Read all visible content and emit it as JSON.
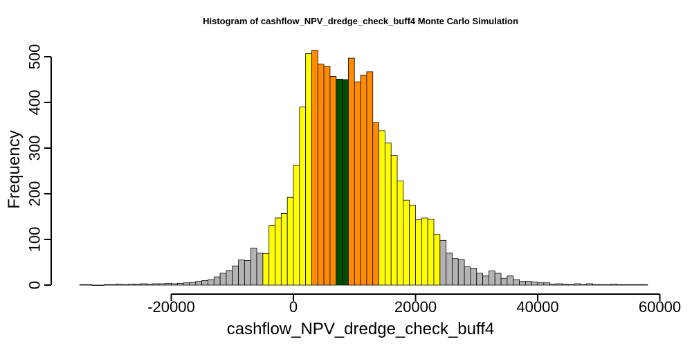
{
  "chart_data": {
    "type": "bar",
    "title": "Histogram of  cashflow_NPV_dredge_check_buff4  Monte Carlo Simulation",
    "xlabel": "cashflow_NPV_dredge_check_buff4",
    "ylabel": "Frequency",
    "xlim": [
      -36000,
      60000
    ],
    "ylim": [
      0,
      500
    ],
    "bin_width": 1000,
    "x_ticks": [
      -20000,
      0,
      20000,
      40000,
      60000
    ],
    "x_tick_labels": [
      "-20000",
      "0",
      "20000",
      "40000",
      "60000"
    ],
    "y_ticks": [
      0,
      100,
      200,
      300,
      400,
      500
    ],
    "y_tick_labels": [
      "0",
      "100",
      "200",
      "300",
      "400",
      "500"
    ],
    "grid": false,
    "legend": "none",
    "colors": {
      "gray": "#b3b3b3",
      "yellow": "#ffff00",
      "orange": "#ff8c00",
      "green": "#004d00"
    },
    "bins": [
      {
        "x0": -35000,
        "x1": -34000,
        "count": 1,
        "color": "gray"
      },
      {
        "x0": -34000,
        "x1": -33000,
        "count": 1,
        "color": "gray"
      },
      {
        "x0": -33000,
        "x1": -32000,
        "count": 0,
        "color": "gray"
      },
      {
        "x0": -32000,
        "x1": -31000,
        "count": 0,
        "color": "gray"
      },
      {
        "x0": -31000,
        "x1": -30000,
        "count": 1,
        "color": "gray"
      },
      {
        "x0": -30000,
        "x1": -29000,
        "count": 1,
        "color": "gray"
      },
      {
        "x0": -29000,
        "x1": -28000,
        "count": 2,
        "color": "gray"
      },
      {
        "x0": -28000,
        "x1": -27000,
        "count": 1,
        "color": "gray"
      },
      {
        "x0": -27000,
        "x1": -26000,
        "count": 2,
        "color": "gray"
      },
      {
        "x0": -26000,
        "x1": -25000,
        "count": 2,
        "color": "gray"
      },
      {
        "x0": -25000,
        "x1": -24000,
        "count": 3,
        "color": "gray"
      },
      {
        "x0": -24000,
        "x1": -23000,
        "count": 2,
        "color": "gray"
      },
      {
        "x0": -23000,
        "x1": -22000,
        "count": 3,
        "color": "gray"
      },
      {
        "x0": -22000,
        "x1": -21000,
        "count": 3,
        "color": "gray"
      },
      {
        "x0": -21000,
        "x1": -20000,
        "count": 4,
        "color": "gray"
      },
      {
        "x0": -20000,
        "x1": -19000,
        "count": 3,
        "color": "gray"
      },
      {
        "x0": -19000,
        "x1": -18000,
        "count": 4,
        "color": "gray"
      },
      {
        "x0": -18000,
        "x1": -17000,
        "count": 5,
        "color": "gray"
      },
      {
        "x0": -17000,
        "x1": -16000,
        "count": 6,
        "color": "gray"
      },
      {
        "x0": -16000,
        "x1": -15000,
        "count": 8,
        "color": "gray"
      },
      {
        "x0": -15000,
        "x1": -14000,
        "count": 10,
        "color": "gray"
      },
      {
        "x0": -14000,
        "x1": -13000,
        "count": 12,
        "color": "gray"
      },
      {
        "x0": -13000,
        "x1": -12000,
        "count": 18,
        "color": "gray"
      },
      {
        "x0": -12000,
        "x1": -11000,
        "count": 26,
        "color": "gray"
      },
      {
        "x0": -11000,
        "x1": -10000,
        "count": 32,
        "color": "gray"
      },
      {
        "x0": -10000,
        "x1": -9000,
        "count": 42,
        "color": "gray"
      },
      {
        "x0": -9000,
        "x1": -8000,
        "count": 55,
        "color": "gray"
      },
      {
        "x0": -8000,
        "x1": -7000,
        "count": 54,
        "color": "gray"
      },
      {
        "x0": -7000,
        "x1": -6000,
        "count": 81,
        "color": "gray"
      },
      {
        "x0": -6000,
        "x1": -5000,
        "count": 70,
        "color": "gray"
      },
      {
        "x0": -5000,
        "x1": -4000,
        "count": 69,
        "color": "yellow"
      },
      {
        "x0": -4000,
        "x1": -3000,
        "count": 131,
        "color": "yellow"
      },
      {
        "x0": -3000,
        "x1": -2000,
        "count": 147,
        "color": "yellow"
      },
      {
        "x0": -2000,
        "x1": -1000,
        "count": 157,
        "color": "yellow"
      },
      {
        "x0": -1000,
        "x1": 0,
        "count": 192,
        "color": "yellow"
      },
      {
        "x0": 0,
        "x1": 1000,
        "count": 262,
        "color": "yellow"
      },
      {
        "x0": 1000,
        "x1": 2000,
        "count": 390,
        "color": "yellow"
      },
      {
        "x0": 2000,
        "x1": 3000,
        "count": 507,
        "color": "yellow"
      },
      {
        "x0": 3000,
        "x1": 4000,
        "count": 514,
        "color": "orange"
      },
      {
        "x0": 4000,
        "x1": 5000,
        "count": 484,
        "color": "orange"
      },
      {
        "x0": 5000,
        "x1": 6000,
        "count": 479,
        "color": "orange"
      },
      {
        "x0": 6000,
        "x1": 7000,
        "count": 457,
        "color": "orange"
      },
      {
        "x0": 7000,
        "x1": 8000,
        "count": 451,
        "color": "green"
      },
      {
        "x0": 8000,
        "x1": 9000,
        "count": 450,
        "color": "green"
      },
      {
        "x0": 9000,
        "x1": 10000,
        "count": 497,
        "color": "orange"
      },
      {
        "x0": 10000,
        "x1": 11000,
        "count": 445,
        "color": "orange"
      },
      {
        "x0": 11000,
        "x1": 12000,
        "count": 460,
        "color": "orange"
      },
      {
        "x0": 12000,
        "x1": 13000,
        "count": 467,
        "color": "orange"
      },
      {
        "x0": 13000,
        "x1": 14000,
        "count": 356,
        "color": "orange"
      },
      {
        "x0": 14000,
        "x1": 15000,
        "count": 338,
        "color": "yellow"
      },
      {
        "x0": 15000,
        "x1": 16000,
        "count": 311,
        "color": "yellow"
      },
      {
        "x0": 16000,
        "x1": 17000,
        "count": 284,
        "color": "yellow"
      },
      {
        "x0": 17000,
        "x1": 18000,
        "count": 228,
        "color": "yellow"
      },
      {
        "x0": 18000,
        "x1": 19000,
        "count": 186,
        "color": "yellow"
      },
      {
        "x0": 19000,
        "x1": 20000,
        "count": 175,
        "color": "yellow"
      },
      {
        "x0": 20000,
        "x1": 21000,
        "count": 143,
        "color": "yellow"
      },
      {
        "x0": 21000,
        "x1": 22000,
        "count": 147,
        "color": "yellow"
      },
      {
        "x0": 22000,
        "x1": 23000,
        "count": 144,
        "color": "yellow"
      },
      {
        "x0": 23000,
        "x1": 24000,
        "count": 111,
        "color": "yellow"
      },
      {
        "x0": 24000,
        "x1": 25000,
        "count": 98,
        "color": "gray"
      },
      {
        "x0": 25000,
        "x1": 26000,
        "count": 70,
        "color": "gray"
      },
      {
        "x0": 26000,
        "x1": 27000,
        "count": 58,
        "color": "gray"
      },
      {
        "x0": 27000,
        "x1": 28000,
        "count": 56,
        "color": "gray"
      },
      {
        "x0": 28000,
        "x1": 29000,
        "count": 40,
        "color": "gray"
      },
      {
        "x0": 29000,
        "x1": 30000,
        "count": 37,
        "color": "gray"
      },
      {
        "x0": 30000,
        "x1": 31000,
        "count": 26,
        "color": "gray"
      },
      {
        "x0": 31000,
        "x1": 32000,
        "count": 20,
        "color": "gray"
      },
      {
        "x0": 32000,
        "x1": 33000,
        "count": 31,
        "color": "gray"
      },
      {
        "x0": 33000,
        "x1": 34000,
        "count": 26,
        "color": "gray"
      },
      {
        "x0": 34000,
        "x1": 35000,
        "count": 15,
        "color": "gray"
      },
      {
        "x0": 35000,
        "x1": 36000,
        "count": 20,
        "color": "gray"
      },
      {
        "x0": 36000,
        "x1": 37000,
        "count": 12,
        "color": "gray"
      },
      {
        "x0": 37000,
        "x1": 38000,
        "count": 8,
        "color": "gray"
      },
      {
        "x0": 38000,
        "x1": 39000,
        "count": 8,
        "color": "gray"
      },
      {
        "x0": 39000,
        "x1": 40000,
        "count": 7,
        "color": "gray"
      },
      {
        "x0": 40000,
        "x1": 41000,
        "count": 5,
        "color": "gray"
      },
      {
        "x0": 41000,
        "x1": 42000,
        "count": 5,
        "color": "gray"
      },
      {
        "x0": 42000,
        "x1": 43000,
        "count": 2,
        "color": "gray"
      },
      {
        "x0": 43000,
        "x1": 44000,
        "count": 3,
        "color": "gray"
      },
      {
        "x0": 44000,
        "x1": 45000,
        "count": 2,
        "color": "gray"
      },
      {
        "x0": 45000,
        "x1": 46000,
        "count": 1,
        "color": "gray"
      },
      {
        "x0": 46000,
        "x1": 47000,
        "count": 3,
        "color": "gray"
      },
      {
        "x0": 47000,
        "x1": 48000,
        "count": 1,
        "color": "gray"
      },
      {
        "x0": 48000,
        "x1": 49000,
        "count": 3,
        "color": "gray"
      },
      {
        "x0": 49000,
        "x1": 50000,
        "count": 1,
        "color": "gray"
      },
      {
        "x0": 50000,
        "x1": 51000,
        "count": 1,
        "color": "gray"
      },
      {
        "x0": 51000,
        "x1": 52000,
        "count": 1,
        "color": "gray"
      },
      {
        "x0": 52000,
        "x1": 53000,
        "count": 2,
        "color": "gray"
      },
      {
        "x0": 53000,
        "x1": 54000,
        "count": 1,
        "color": "gray"
      },
      {
        "x0": 54000,
        "x1": 55000,
        "count": 1,
        "color": "gray"
      },
      {
        "x0": 55000,
        "x1": 56000,
        "count": 1,
        "color": "gray"
      },
      {
        "x0": 56000,
        "x1": 57000,
        "count": 1,
        "color": "gray"
      },
      {
        "x0": 57000,
        "x1": 58000,
        "count": 1,
        "color": "gray"
      }
    ]
  }
}
